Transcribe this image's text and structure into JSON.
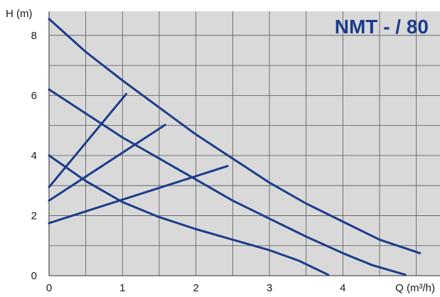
{
  "chart_data": {
    "type": "line",
    "title": "NMT - / 80",
    "xlabel": "Q (m³/h)",
    "ylabel": "H (m)",
    "xlim": [
      0,
      5.4
    ],
    "ylim": [
      0,
      8.8
    ],
    "x_ticks": [
      0,
      1,
      2,
      3,
      4
    ],
    "y_ticks": [
      0,
      2,
      4,
      6,
      8
    ],
    "grid": true,
    "background": "#d9d9d9",
    "line_color": "#1a3c8c",
    "series": [
      {
        "points": [
          [
            0,
            8.55
          ],
          [
            0.5,
            7.45
          ],
          [
            1,
            6.5
          ],
          [
            1.5,
            5.6
          ],
          [
            2,
            4.7
          ],
          [
            2.5,
            3.9
          ],
          [
            3,
            3.1
          ],
          [
            3.5,
            2.4
          ],
          [
            4,
            1.8
          ],
          [
            4.5,
            1.2
          ],
          [
            5.05,
            0.75
          ]
        ]
      },
      {
        "points": [
          [
            0,
            6.2
          ],
          [
            0.5,
            5.4
          ],
          [
            1,
            4.6
          ],
          [
            1.5,
            3.9
          ],
          [
            2,
            3.2
          ],
          [
            2.5,
            2.5
          ],
          [
            3,
            1.9
          ],
          [
            3.5,
            1.3
          ],
          [
            4,
            0.75
          ],
          [
            4.4,
            0.35
          ],
          [
            4.85,
            0.03
          ]
        ]
      },
      {
        "points": [
          [
            0,
            4.0
          ],
          [
            0.5,
            3.15
          ],
          [
            1,
            2.45
          ],
          [
            1.5,
            1.95
          ],
          [
            2,
            1.55
          ],
          [
            2.5,
            1.2
          ],
          [
            3,
            0.85
          ],
          [
            3.4,
            0.5
          ],
          [
            3.8,
            0.03
          ]
        ]
      },
      {
        "points": [
          [
            0,
            2.95
          ],
          [
            1.05,
            6.05
          ]
        ]
      },
      {
        "points": [
          [
            0,
            2.5
          ],
          [
            1.58,
            5.02
          ]
        ]
      },
      {
        "points": [
          [
            0,
            1.75
          ],
          [
            2.43,
            3.65
          ]
        ]
      }
    ]
  }
}
